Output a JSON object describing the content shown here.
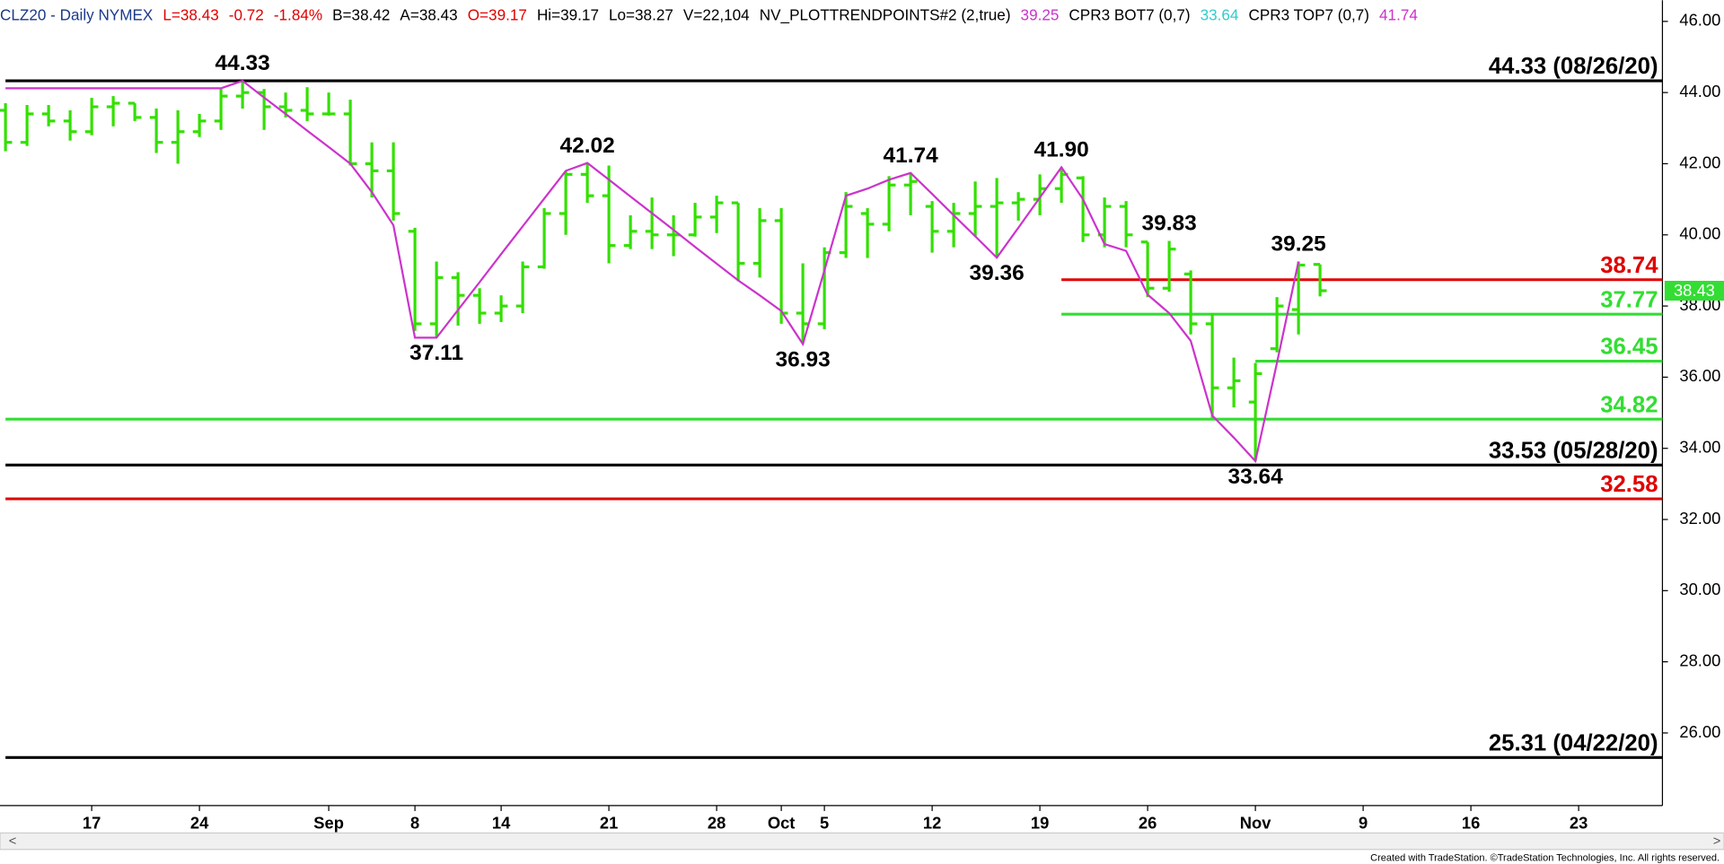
{
  "chart_data": {
    "type": "ohlc",
    "header": [
      {
        "text": "CLZ20 - Daily  NYMEX",
        "color": "#1a3a8a"
      },
      {
        "text": "L=38.43",
        "color": "#e00000"
      },
      {
        "text": "-0.72",
        "color": "#e00000"
      },
      {
        "text": "-1.84%",
        "color": "#e00000"
      },
      {
        "text": "B=38.42",
        "color": "#000000"
      },
      {
        "text": "A=38.43",
        "color": "#000000"
      },
      {
        "text": "O=39.17",
        "color": "#e00000"
      },
      {
        "text": "Hi=39.17",
        "color": "#000000"
      },
      {
        "text": "Lo=38.27",
        "color": "#000000"
      },
      {
        "text": "V=22,104",
        "color": "#000000"
      },
      {
        "text": "NV_PLOTTRENDPOINTS#2 (2,true)",
        "color": "#000000"
      },
      {
        "text": "39.25",
        "color": "#cc33cc"
      },
      {
        "text": "CPR3 BOT7 (0,7)",
        "color": "#000000"
      },
      {
        "text": "33.64",
        "color": "#33cccc"
      },
      {
        "text": "CPR3 TOP7 (0,7)",
        "color": "#000000"
      },
      {
        "text": "41.74",
        "color": "#cc33cc"
      }
    ],
    "categories": [
      null,
      null,
      null,
      null,
      "17",
      null,
      null,
      null,
      null,
      "24",
      null,
      null,
      null,
      null,
      null,
      "Sep",
      null,
      null,
      null,
      "8",
      null,
      null,
      null,
      "14",
      null,
      null,
      null,
      null,
      "21",
      null,
      null,
      null,
      null,
      "28",
      null,
      null,
      "Oct",
      null,
      "5",
      null,
      null,
      null,
      null,
      "12",
      null,
      null,
      null,
      null,
      "19",
      null,
      null,
      null,
      null,
      "26",
      null,
      null,
      null,
      null,
      "Nov",
      null,
      null,
      null,
      null,
      "9",
      null,
      null,
      null,
      null,
      "16",
      null,
      null,
      null,
      null,
      "23",
      null,
      null,
      null
    ],
    "open": [
      43.5,
      42.6,
      43.4,
      43.2,
      42.9,
      43.6,
      43.7,
      43.3,
      42.6,
      42.9,
      43.2,
      43.9,
      44.0,
      43.6,
      43.5,
      43.4,
      43.4,
      42.0,
      41.8,
      40.1,
      37.5,
      38.8,
      38.3,
      37.8,
      38.0,
      39.1,
      40.6,
      41.7,
      41.1,
      39.7,
      40.1,
      40.0,
      40.0,
      40.5,
      40.9,
      39.2,
      40.4,
      37.8,
      37.5,
      39.5,
      40.6,
      40.3,
      41.4,
      40.8,
      40.1,
      40.6,
      40.8,
      40.9,
      41.0,
      41.3,
      41.6,
      40.0,
      40.8,
      39.8,
      38.5,
      38.9,
      37.5,
      35.7,
      35.3,
      36.8,
      37.9,
      39.17,
      null,
      null,
      null,
      null,
      null,
      null,
      null,
      null,
      null,
      null,
      null,
      null,
      null,
      null,
      null
    ],
    "high": [
      43.7,
      43.65,
      43.65,
      43.5,
      43.85,
      43.9,
      43.7,
      43.55,
      43.5,
      43.4,
      44.1,
      44.33,
      44.1,
      44.0,
      44.15,
      44.0,
      43.8,
      42.6,
      42.6,
      40.2,
      39.25,
      38.95,
      38.5,
      38.3,
      39.25,
      40.75,
      41.8,
      42.02,
      41.95,
      40.55,
      41.05,
      40.55,
      40.9,
      41.1,
      40.9,
      40.75,
      40.75,
      39.2,
      39.65,
      41.2,
      40.75,
      41.65,
      41.74,
      40.95,
      40.9,
      41.5,
      41.6,
      41.2,
      41.7,
      41.9,
      41.65,
      41.05,
      40.95,
      39.8,
      39.83,
      39.0,
      37.8,
      36.55,
      36.4,
      38.25,
      39.25,
      39.17,
      null,
      null,
      null,
      null,
      null,
      null,
      null,
      null,
      null,
      null,
      null,
      null,
      null,
      null,
      null
    ],
    "low": [
      42.35,
      42.5,
      43.05,
      42.65,
      42.8,
      43.05,
      43.2,
      42.3,
      42.0,
      42.75,
      42.95,
      43.55,
      42.95,
      43.3,
      43.2,
      43.35,
      41.95,
      41.05,
      40.4,
      37.3,
      37.11,
      37.45,
      37.5,
      37.55,
      37.8,
      39.05,
      40.0,
      40.9,
      39.2,
      39.6,
      39.6,
      39.4,
      39.95,
      40.05,
      38.7,
      38.8,
      37.5,
      36.93,
      37.35,
      39.35,
      39.35,
      40.1,
      40.55,
      39.5,
      39.65,
      39.95,
      39.36,
      40.4,
      40.55,
      40.9,
      39.8,
      39.65,
      39.65,
      38.25,
      38.4,
      37.2,
      34.85,
      35.15,
      33.64,
      36.7,
      37.2,
      38.27,
      null,
      null,
      null,
      null,
      null,
      null,
      null,
      null,
      null,
      null,
      null,
      null,
      null,
      null,
      null
    ],
    "close": [
      42.6,
      43.4,
      43.2,
      42.9,
      43.6,
      43.7,
      43.3,
      42.6,
      42.9,
      43.2,
      43.9,
      44.0,
      43.6,
      43.5,
      43.4,
      43.4,
      42.0,
      41.8,
      40.6,
      37.5,
      38.8,
      38.3,
      37.8,
      38.0,
      39.1,
      40.6,
      41.7,
      41.1,
      39.7,
      40.1,
      40.0,
      40.0,
      40.5,
      40.9,
      39.2,
      40.4,
      37.8,
      37.5,
      39.5,
      40.8,
      40.3,
      41.4,
      41.5,
      40.1,
      40.6,
      40.8,
      40.9,
      41.0,
      41.3,
      41.7,
      40.0,
      40.8,
      40.0,
      38.5,
      39.6,
      37.5,
      35.7,
      35.9,
      36.1,
      38.0,
      39.15,
      38.43,
      null,
      null,
      null,
      null,
      null,
      null,
      null,
      null,
      null,
      null,
      null,
      null,
      null,
      null,
      null
    ],
    "color": "#33e000",
    "trend": {
      "color": "#cc33cc",
      "values": [
        44.12,
        44.12,
        44.12,
        44.12,
        44.12,
        44.12,
        44.12,
        44.12,
        44.12,
        44.12,
        44.12,
        44.33,
        43.86,
        43.4,
        42.93,
        42.47,
        42.0,
        41.2,
        40.27,
        37.11,
        37.11,
        37.89,
        38.67,
        39.46,
        40.24,
        41.02,
        41.8,
        42.02,
        41.55,
        41.08,
        40.61,
        40.14,
        39.66,
        39.19,
        38.72,
        38.3,
        37.86,
        36.93,
        39.0,
        41.1,
        41.3,
        41.55,
        41.74,
        41.15,
        40.55,
        39.96,
        39.36,
        40.2,
        41.05,
        41.9,
        41.0,
        39.74,
        39.55,
        38.32,
        37.8,
        37.02,
        34.92,
        34.3,
        33.64,
        36.4,
        39.25,
        null,
        null,
        null,
        null,
        null,
        null,
        null,
        null,
        null,
        null,
        null,
        null,
        null,
        null,
        null,
        null
      ]
    },
    "levels": [
      {
        "value": 44.33,
        "label": "44.33 (08/26/20)",
        "color": "#000000",
        "start_index": 0
      },
      {
        "value": 38.74,
        "label": "38.74",
        "color": "#e00000",
        "start_index": 49
      },
      {
        "value": 37.77,
        "label": "37.77",
        "color": "#33dd33",
        "start_index": 49
      },
      {
        "value": 36.45,
        "label": "36.45",
        "color": "#33dd33",
        "start_index": 58
      },
      {
        "value": 34.82,
        "label": "34.82",
        "color": "#33dd33",
        "start_index": 0
      },
      {
        "value": 33.53,
        "label": "33.53 (05/28/20)",
        "color": "#000000",
        "start_index": 0
      },
      {
        "value": 32.58,
        "label": "32.58",
        "color": "#e00000",
        "start_index": 0
      },
      {
        "value": 25.31,
        "label": "25.31 (04/22/20)",
        "color": "#000000",
        "start_index": 0
      }
    ],
    "pivots": [
      {
        "label": "44.33",
        "index": 11,
        "value": 44.33,
        "side": "above"
      },
      {
        "label": "37.11",
        "index": 20,
        "value": 37.11,
        "side": "below"
      },
      {
        "label": "42.02",
        "index": 27,
        "value": 42.02,
        "side": "above"
      },
      {
        "label": "36.93",
        "index": 37,
        "value": 36.93,
        "side": "below"
      },
      {
        "label": "41.74",
        "index": 42,
        "value": 41.74,
        "side": "above"
      },
      {
        "label": "39.36",
        "index": 46,
        "value": 39.36,
        "side": "below"
      },
      {
        "label": "41.90",
        "index": 49,
        "value": 41.9,
        "side": "above"
      },
      {
        "label": "39.83",
        "index": 54,
        "value": 39.83,
        "side": "above"
      },
      {
        "label": "33.64",
        "index": 58,
        "value": 33.64,
        "side": "below"
      },
      {
        "label": "39.25",
        "index": 60,
        "value": 39.25,
        "side": "above"
      }
    ],
    "last_price": {
      "value": 38.43,
      "color": "#33dd33"
    },
    "ylim": [
      23.96,
      46.44
    ],
    "yticks": [
      {
        "value": 26,
        "label": "26.00"
      },
      {
        "value": 28,
        "label": "28.00"
      },
      {
        "value": 30,
        "label": "30.00"
      },
      {
        "value": 32,
        "label": "32.00"
      },
      {
        "value": 34,
        "label": "34.00"
      },
      {
        "value": 36,
        "label": "36.00"
      },
      {
        "value": 38,
        "label": "38.00"
      },
      {
        "value": 40,
        "label": "40.00"
      },
      {
        "value": 42,
        "label": "42.00"
      },
      {
        "value": 44,
        "label": "44.00"
      },
      {
        "value": 46,
        "label": "46.00"
      }
    ],
    "footer": "Created with TradeStation. ©TradeStation Technologies, Inc. All rights reserved."
  }
}
